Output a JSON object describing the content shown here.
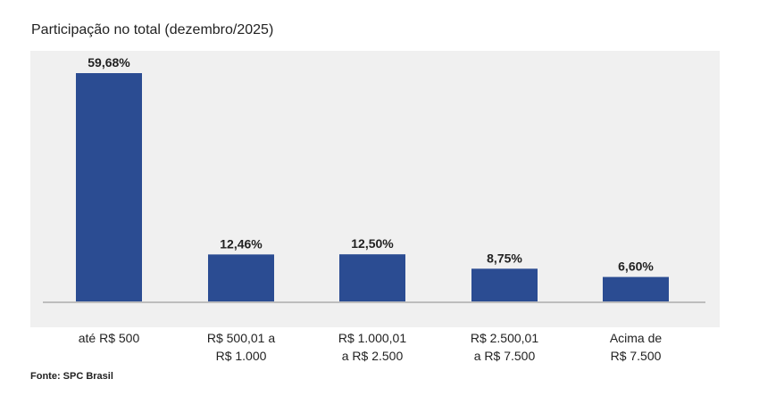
{
  "chart_data": {
    "type": "bar",
    "title": "Participação no total (dezembro/2025)",
    "categories": [
      "até R$ 500",
      "R$ 500,01 a\nR$ 1.000",
      "R$ 1.000,01\na R$ 2.500",
      "R$ 2.500,01\na R$ 7.500",
      "Acima de\nR$ 7.500"
    ],
    "values": [
      59.68,
      12.46,
      12.5,
      8.75,
      6.6
    ],
    "data_labels": [
      "59,68%",
      "12,46%",
      "12,50%",
      "8,75%",
      "6,60%"
    ],
    "xlabel": "",
    "ylabel": "",
    "ylim": [
      0,
      60
    ],
    "grid": false,
    "bar_color": "#2b4c92",
    "source": "Fonte: SPC Brasil"
  }
}
